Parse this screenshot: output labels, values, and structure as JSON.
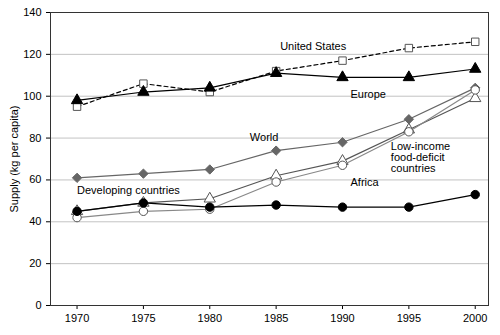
{
  "chart_data": {
    "type": "line",
    "y_label": "Supply (kg per capita)",
    "x": [
      1970,
      1975,
      1980,
      1985,
      1990,
      1995,
      2000
    ],
    "xlim": [
      1968,
      2001
    ],
    "xticks": [
      1970,
      1975,
      1980,
      1985,
      1990,
      1995,
      2000
    ],
    "ylim": [
      0,
      140
    ],
    "yticks": [
      0,
      20,
      40,
      60,
      80,
      100,
      120,
      140
    ],
    "grid": true,
    "series": [
      {
        "name": "United States",
        "color": "#000000",
        "marker": "open-square",
        "line_style": "dashed",
        "values": [
          95,
          106,
          102,
          112,
          117,
          123,
          126
        ]
      },
      {
        "name": "Europe",
        "color": "#000000",
        "marker": "filled-triangle",
        "line_style": "solid",
        "values": [
          98,
          102,
          104,
          111,
          109,
          109,
          113
        ]
      },
      {
        "name": "World",
        "color": "#666666",
        "marker": "filled-diamond",
        "line_style": "solid",
        "values": [
          61,
          63,
          65,
          74,
          78,
          89,
          104
        ]
      },
      {
        "name": "Low-income food-deficit countries",
        "color": "#555555",
        "marker": "open-triangle",
        "line_style": "solid",
        "values": [
          45,
          49,
          51,
          62,
          69,
          84,
          99
        ]
      },
      {
        "name": "Developing countries",
        "color": "#888888",
        "marker": "open-circle",
        "line_style": "solid",
        "values": [
          42,
          45,
          46,
          59,
          67,
          83,
          103
        ]
      },
      {
        "name": "Africa",
        "color": "#000000",
        "marker": "filled-circle",
        "line_style": "solid",
        "values": [
          45,
          49,
          47,
          48,
          47,
          47,
          53
        ]
      }
    ]
  }
}
